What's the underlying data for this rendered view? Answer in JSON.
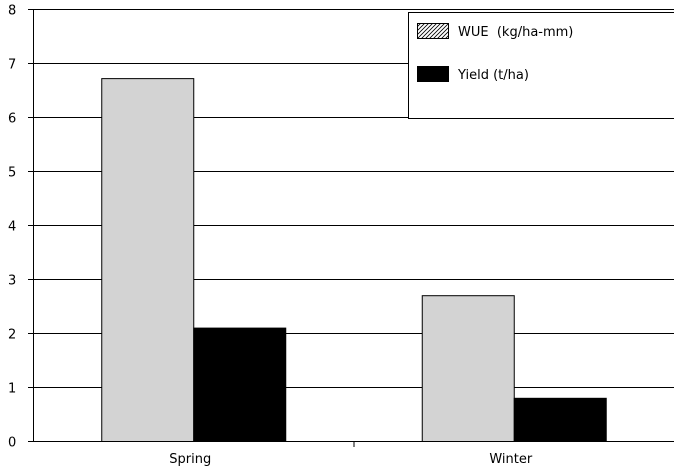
{
  "chart_data": {
    "type": "bar",
    "categories": [
      "Spring",
      "Winter"
    ],
    "series": [
      {
        "name": "WUE  (kg/ha-mm)",
        "values": [
          6.72,
          2.7
        ],
        "color": "#d3d3d3",
        "legend_pattern": "hatch"
      },
      {
        "name": "Yield (t/ha)",
        "values": [
          2.1,
          0.8
        ],
        "color": "#000000",
        "legend_pattern": "solid"
      }
    ],
    "title": "",
    "xlabel": "",
    "ylabel": "",
    "ylim": [
      0,
      8
    ],
    "yticks": [
      "0",
      "1",
      "2",
      "3",
      "4",
      "5",
      "6",
      "7",
      "8"
    ],
    "grid": true,
    "legend_position": "top-right"
  }
}
